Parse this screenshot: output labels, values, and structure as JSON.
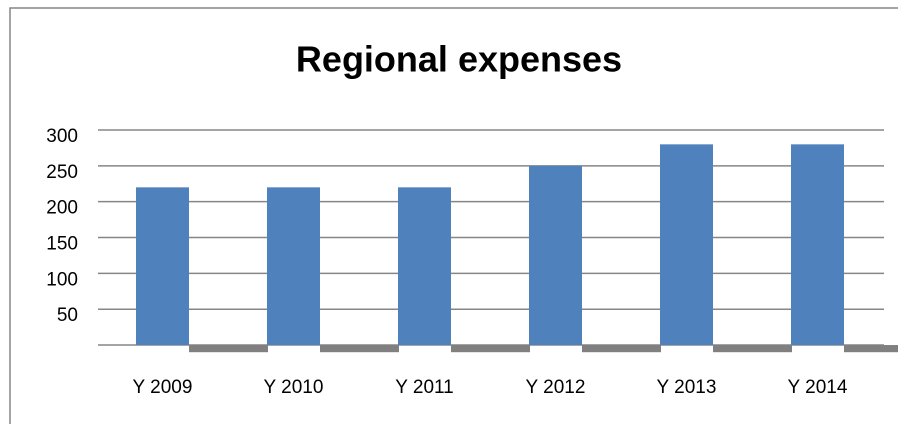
{
  "chart_data": {
    "type": "bar",
    "title": "Regional expenses",
    "categories": [
      "Y 2009",
      "Y 2010",
      "Y 2011",
      "Y 2012",
      "Y 2013",
      "Y 2014"
    ],
    "series": [
      {
        "color": "#4f81bd",
        "values": [
          220,
          220,
          220,
          250,
          280,
          280
        ]
      },
      {
        "color": "#808080",
        "values": [
          -10,
          -10,
          -10,
          -10,
          -10,
          -10
        ]
      }
    ],
    "ylim": [
      -10,
      300
    ],
    "yticks": [
      50,
      100,
      150,
      200,
      250,
      300
    ],
    "grid": true
  }
}
